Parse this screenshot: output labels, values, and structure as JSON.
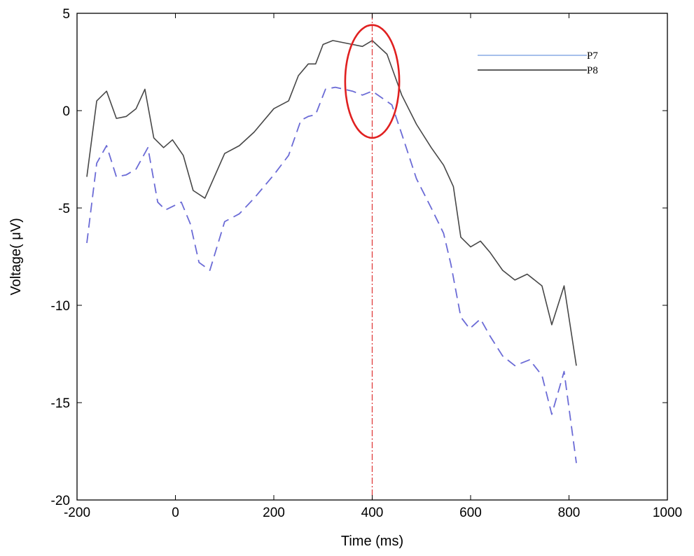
{
  "chart_data": {
    "type": "line",
    "title": "",
    "xlabel": "Time (ms)",
    "ylabel": "Voltage( μV)",
    "xlim": [
      -200,
      1000
    ],
    "ylim": [
      -20,
      5
    ],
    "xticks": [
      -200,
      0,
      200,
      400,
      600,
      800,
      1000
    ],
    "yticks": [
      -20,
      -15,
      -10,
      -5,
      0,
      5
    ],
    "xtick_labels": [
      "-200",
      "0",
      "200",
      "400",
      "600",
      "800",
      "1000"
    ],
    "ytick_labels": [
      "-20",
      "-15",
      "-10",
      "-5",
      "0",
      "5"
    ],
    "grid": false,
    "legend_position": "top-right",
    "series": [
      {
        "name": "P7",
        "style": "dashed",
        "color": "#6b6bd6",
        "legend_color": "#9ab6e8",
        "points": [
          [
            -180,
            -6.8
          ],
          [
            -160,
            -2.7
          ],
          [
            -140,
            -1.8
          ],
          [
            -120,
            -3.4
          ],
          [
            -100,
            -3.3
          ],
          [
            -80,
            -3.0
          ],
          [
            -56,
            -1.9
          ],
          [
            -36,
            -4.7
          ],
          [
            -20,
            -5.1
          ],
          [
            -4,
            -4.9
          ],
          [
            12,
            -4.7
          ],
          [
            30,
            -5.8
          ],
          [
            48,
            -7.8
          ],
          [
            70,
            -8.2
          ],
          [
            100,
            -5.7
          ],
          [
            130,
            -5.3
          ],
          [
            160,
            -4.5
          ],
          [
            200,
            -3.3
          ],
          [
            230,
            -2.3
          ],
          [
            255,
            -0.5
          ],
          [
            270,
            -0.3
          ],
          [
            285,
            -0.2
          ],
          [
            305,
            1.1
          ],
          [
            325,
            1.2
          ],
          [
            360,
            1.0
          ],
          [
            380,
            0.8
          ],
          [
            400,
            1.0
          ],
          [
            440,
            0.3
          ],
          [
            460,
            -1.2
          ],
          [
            490,
            -3.5
          ],
          [
            520,
            -5.0
          ],
          [
            545,
            -6.3
          ],
          [
            560,
            -7.9
          ],
          [
            580,
            -10.6
          ],
          [
            598,
            -11.2
          ],
          [
            620,
            -10.7
          ],
          [
            640,
            -11.6
          ],
          [
            665,
            -12.6
          ],
          [
            690,
            -13.1
          ],
          [
            720,
            -12.8
          ],
          [
            745,
            -13.6
          ],
          [
            765,
            -15.6
          ],
          [
            790,
            -13.4
          ],
          [
            815,
            -18.1
          ]
        ]
      },
      {
        "name": "P8",
        "style": "solid",
        "color": "#474747",
        "legend_color": "#474747",
        "points": [
          [
            -180,
            -3.4
          ],
          [
            -160,
            0.5
          ],
          [
            -140,
            1.0
          ],
          [
            -120,
            -0.4
          ],
          [
            -100,
            -0.3
          ],
          [
            -80,
            0.1
          ],
          [
            -62,
            1.1
          ],
          [
            -44,
            -1.4
          ],
          [
            -24,
            -1.9
          ],
          [
            -6,
            -1.5
          ],
          [
            16,
            -2.3
          ],
          [
            36,
            -4.1
          ],
          [
            60,
            -4.5
          ],
          [
            100,
            -2.2
          ],
          [
            130,
            -1.8
          ],
          [
            160,
            -1.1
          ],
          [
            200,
            0.1
          ],
          [
            230,
            0.5
          ],
          [
            250,
            1.8
          ],
          [
            270,
            2.4
          ],
          [
            285,
            2.4
          ],
          [
            300,
            3.4
          ],
          [
            320,
            3.6
          ],
          [
            360,
            3.4
          ],
          [
            380,
            3.3
          ],
          [
            400,
            3.6
          ],
          [
            430,
            2.9
          ],
          [
            460,
            0.8
          ],
          [
            490,
            -0.7
          ],
          [
            520,
            -1.9
          ],
          [
            545,
            -2.8
          ],
          [
            565,
            -3.9
          ],
          [
            580,
            -6.5
          ],
          [
            600,
            -7.0
          ],
          [
            620,
            -6.7
          ],
          [
            640,
            -7.3
          ],
          [
            665,
            -8.2
          ],
          [
            690,
            -8.7
          ],
          [
            715,
            -8.4
          ],
          [
            745,
            -9.0
          ],
          [
            765,
            -11.0
          ],
          [
            790,
            -9.0
          ],
          [
            815,
            -13.1
          ]
        ]
      }
    ],
    "annotations": {
      "vertical_line_x": 400,
      "vertical_line_color": "#e03c3c",
      "ellipse": {
        "center_x": 400,
        "center_y": 1.5,
        "half_width_x": 55,
        "half_height_y": 2.9,
        "color": "#e02020"
      }
    }
  }
}
